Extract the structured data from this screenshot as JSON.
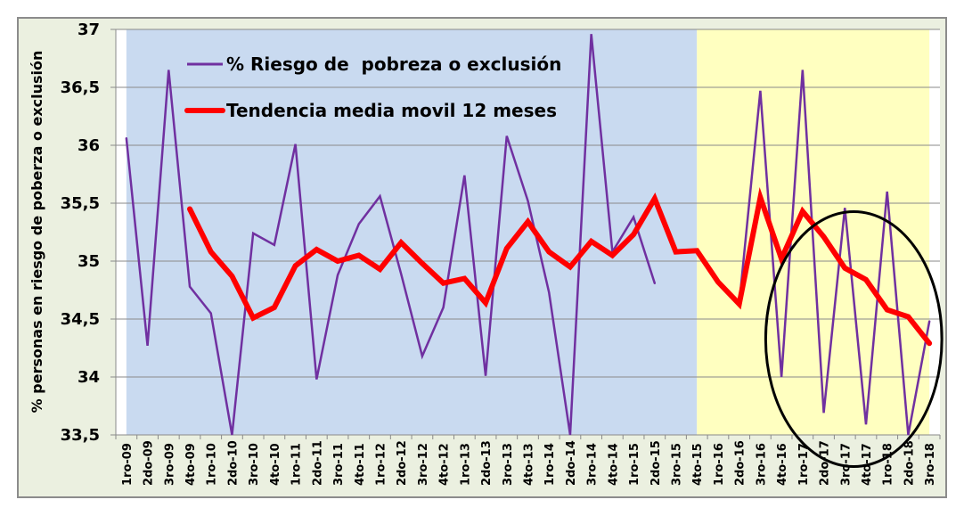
{
  "chart_data": {
    "type": "line",
    "ylabel": "% personas en riesgo de poberza o exclusión",
    "xlabel": "",
    "ylim": [
      33.5,
      37
    ],
    "yticks": [
      "33,5",
      "34",
      "34,5",
      "35",
      "35,5",
      "36",
      "36,5",
      "37"
    ],
    "grid": true,
    "legend_position": "top-left",
    "categories": [
      "1ro-09",
      "2do-09",
      "3ro-09",
      "4to-09",
      "1ro-10",
      "2do-10",
      "3ro-10",
      "4to-10",
      "1ro-11",
      "2do-11",
      "3ro-11",
      "4to-11",
      "1ro-12",
      "2do-12",
      "3ro-12",
      "4to-12",
      "1ro-13",
      "2do-13",
      "3ro-13",
      "4to-13",
      "1ro-14",
      "2do-14",
      "3ro-14",
      "4to-14",
      "1ro-15",
      "2do-15",
      "3ro-15",
      "4to-15",
      "1ro-16",
      "2do-16",
      "3ro-16",
      "4to-16",
      "1ro-17",
      "2do-17",
      "3ro-17",
      "4to-17",
      "1ro-18",
      "2do-18",
      "3ro-18"
    ],
    "series": [
      {
        "name": "% Riesgo de  pobreza o exclusión",
        "color": "#7030a0",
        "values": [
          36.06,
          34.27,
          36.65,
          34.78,
          34.55,
          33.5,
          35.24,
          35.14,
          36.01,
          33.98,
          34.88,
          35.32,
          35.56,
          34.89,
          34.18,
          34.6,
          35.74,
          34.01,
          36.08,
          35.52,
          34.73,
          33.5,
          36.96,
          35.08,
          35.38,
          34.81,
          null,
          null,
          null,
          34.63,
          36.47,
          34.0,
          36.65,
          33.69,
          35.46,
          33.59,
          35.6,
          33.5,
          34.48
        ]
      },
      {
        "name": "Tendencia media movil 12 meses",
        "color": "#ff0000",
        "values": [
          null,
          null,
          null,
          35.45,
          35.08,
          34.87,
          34.51,
          34.6,
          34.96,
          35.1,
          35.0,
          35.05,
          34.93,
          35.16,
          34.98,
          34.81,
          34.85,
          34.64,
          35.11,
          35.34,
          35.08,
          34.95,
          35.17,
          35.05,
          35.23,
          35.54,
          35.08,
          35.09,
          34.82,
          34.63,
          35.55,
          35.02,
          35.43,
          35.21,
          34.94,
          34.84,
          34.58,
          34.52,
          34.29
        ]
      }
    ],
    "shaded_regions": [
      {
        "from": "1ro-09",
        "to": "4to-15",
        "color": "#c9daf0"
      },
      {
        "from": "4to-15",
        "to": "3ro-18",
        "color": "#ffffc0"
      }
    ],
    "annotation": {
      "type": "ellipse",
      "from": "3ro-16",
      "to": "3ro-18"
    }
  }
}
